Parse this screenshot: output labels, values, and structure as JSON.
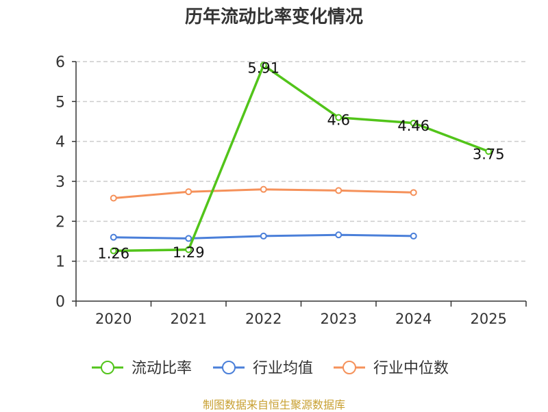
{
  "chart_data": {
    "type": "line",
    "title": "历年流动比率变化情况",
    "categories": [
      "2020",
      "2021",
      "2022",
      "2023",
      "2024",
      "2025"
    ],
    "ylim": [
      0,
      6
    ],
    "yticks": [
      0,
      1,
      2,
      3,
      4,
      5,
      6
    ],
    "grid": true,
    "legend_position": "bottom",
    "series": [
      {
        "name": "流动比率",
        "color": "#52c41a",
        "values": [
          1.26,
          1.29,
          5.91,
          4.6,
          4.46,
          3.75
        ],
        "labels": [
          "1.26",
          "1.29",
          "5.91",
          "4.6",
          "4.46",
          "3.75"
        ]
      },
      {
        "name": "行业均值",
        "color": "#4a7fd9",
        "values": [
          1.6,
          1.57,
          1.63,
          1.66,
          1.63,
          null
        ]
      },
      {
        "name": "行业中位数",
        "color": "#f5915a",
        "values": [
          2.58,
          2.74,
          2.8,
          2.77,
          2.72,
          null
        ]
      }
    ]
  },
  "source": {
    "text": "制图数据来自恒生聚源数据库",
    "color": "#c8a032"
  }
}
